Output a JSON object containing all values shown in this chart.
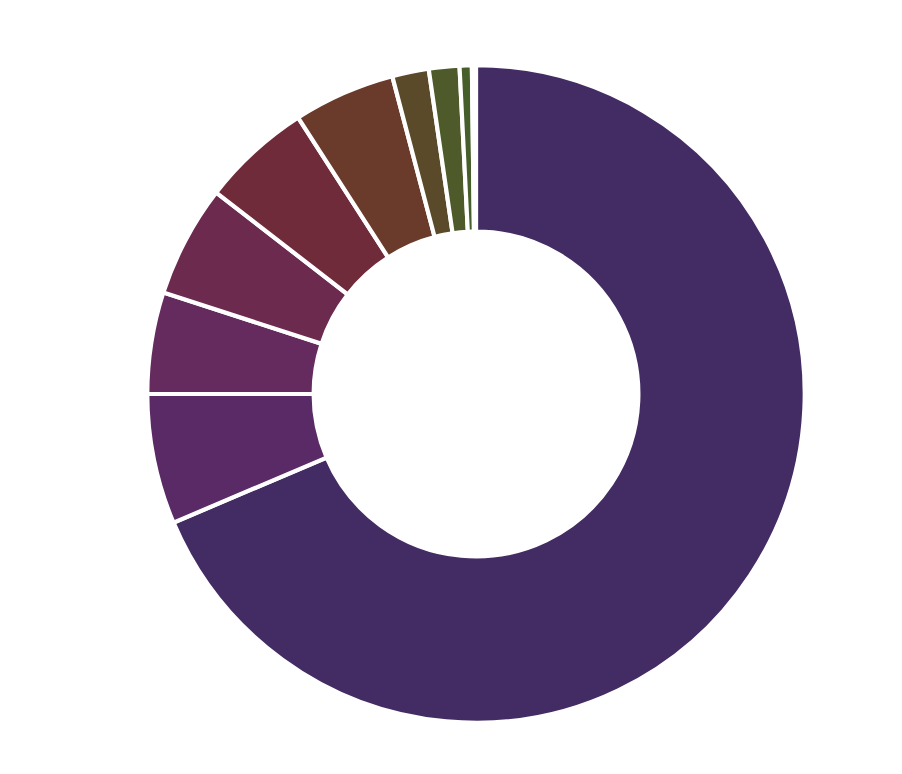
{
  "chart_data": {
    "type": "donut",
    "categories": [
      null,
      null,
      null,
      null,
      null,
      null,
      null,
      null,
      null,
      null
    ],
    "values": [
      68.6,
      6.4,
      5.0,
      5.5,
      5.4,
      5.0,
      1.8,
      1.5,
      0.6,
      0.2
    ],
    "colors": [
      "#432c63",
      "#5a2a66",
      "#652a5e",
      "#6b2a4e",
      "#702b3a",
      "#6a3a2a",
      "#5b4a2a",
      "#4f5a2a",
      "#455e2a",
      "#3e6a2a"
    ]
  }
}
